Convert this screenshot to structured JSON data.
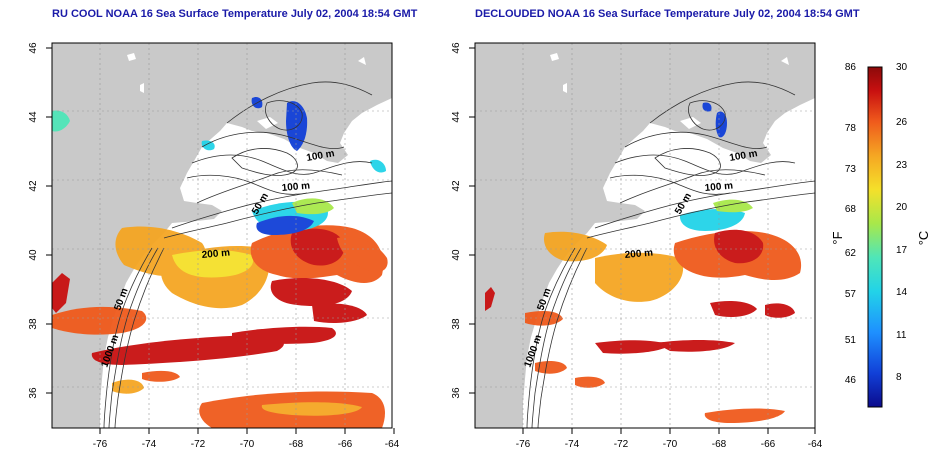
{
  "left_panel": {
    "title": "RU COOL NOAA 16 Sea Surface Temperature July 02, 2004 18:54 GMT"
  },
  "right_panel": {
    "title": "DECLOUDED NOAA 16 Sea Surface Temperature July 02, 2004 18:54 GMT"
  },
  "axes": {
    "lat_ticks": [
      "36",
      "38",
      "40",
      "42",
      "44",
      "46"
    ],
    "lon_ticks": [
      "-76",
      "-74",
      "-72",
      "-70",
      "-68",
      "-66",
      "-64"
    ]
  },
  "contour_labels": [
    "100 m",
    "100 m",
    "50 m",
    "200 m",
    "50 m",
    "1000 m"
  ],
  "colorbar": {
    "f_unit": "°F",
    "c_unit": "°C",
    "f_ticks": [
      "86",
      "78",
      "73",
      "68",
      "62",
      "57",
      "51",
      "46"
    ],
    "c_ticks": [
      "30",
      "26",
      "23",
      "20",
      "17",
      "14",
      "11",
      "8"
    ],
    "colors": [
      "#0b0b8c",
      "#1140d8",
      "#1e90ff",
      "#22d3e8",
      "#4fe6b8",
      "#a8e84a",
      "#f5e02a",
      "#f5a623",
      "#ef5a1c",
      "#c81010",
      "#8c0a0a"
    ]
  }
}
